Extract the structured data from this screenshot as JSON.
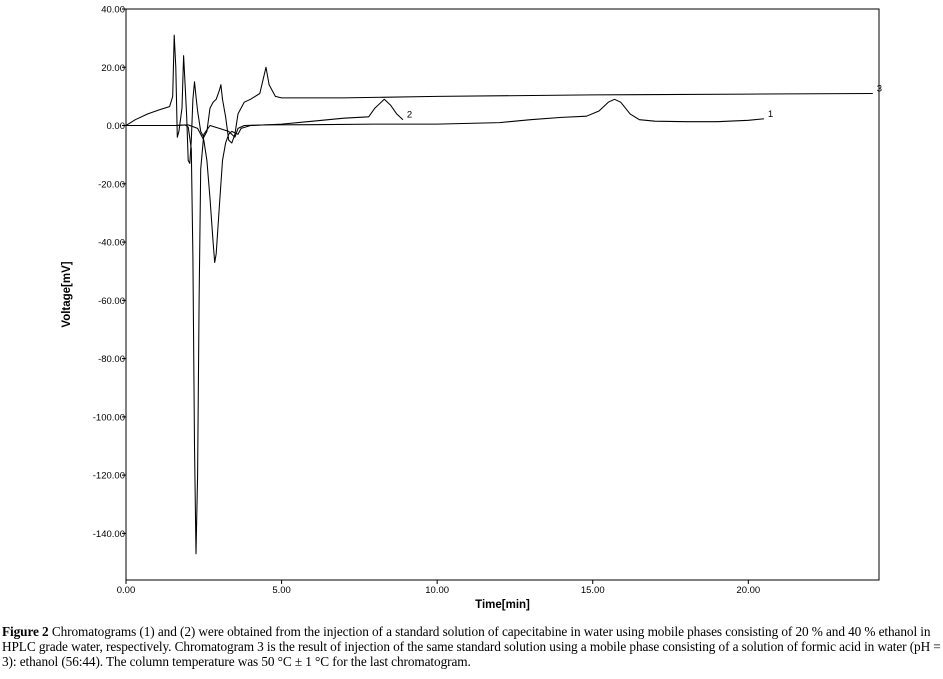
{
  "chart_data": {
    "type": "line",
    "xlabel": "Time[min]",
    "ylabel": "Voltage[mV]",
    "xlim": [
      0,
      24.2
    ],
    "ylim": [
      -156,
      40
    ],
    "xticks": [
      "0.00",
      "5.00",
      "10.00",
      "15.00",
      "20.00"
    ],
    "yticks": [
      "40.00",
      "20.00",
      "0.00",
      "-20.00",
      "-40.00",
      "-60.00",
      "-80.00",
      "-100.00",
      "-120.00",
      "-140.00"
    ],
    "grid": false,
    "series": [
      {
        "name": "1",
        "points": [
          [
            0,
            0
          ],
          [
            1.6,
            0
          ],
          [
            1.9,
            0.2
          ],
          [
            2.0,
            -0.5
          ],
          [
            2.1,
            -8
          ],
          [
            2.15,
            -45
          ],
          [
            2.2,
            -110
          ],
          [
            2.25,
            -147
          ],
          [
            2.3,
            -120
          ],
          [
            2.35,
            -60
          ],
          [
            2.4,
            -15
          ],
          [
            2.5,
            -3
          ],
          [
            2.7,
            0
          ],
          [
            3.0,
            -1
          ],
          [
            3.3,
            -2
          ],
          [
            3.5,
            -4
          ],
          [
            3.6,
            -1
          ],
          [
            3.8,
            0
          ],
          [
            4.5,
            0.2
          ],
          [
            6,
            0.3
          ],
          [
            8,
            0.5
          ],
          [
            10,
            0.5
          ],
          [
            12,
            1
          ],
          [
            13,
            2
          ],
          [
            14,
            2.8
          ],
          [
            14.8,
            3.2
          ],
          [
            15.2,
            5
          ],
          [
            15.5,
            8
          ],
          [
            15.7,
            9
          ],
          [
            15.9,
            8
          ],
          [
            16.2,
            4
          ],
          [
            16.5,
            2
          ],
          [
            17,
            1.5
          ],
          [
            18,
            1.3
          ],
          [
            19,
            1.3
          ],
          [
            20,
            1.8
          ],
          [
            20.5,
            2.3
          ]
        ]
      },
      {
        "name": "2",
        "points": [
          [
            0,
            0
          ],
          [
            1.6,
            0
          ],
          [
            2.0,
            0.2
          ],
          [
            2.3,
            -1
          ],
          [
            2.5,
            -5
          ],
          [
            2.6,
            -12
          ],
          [
            2.7,
            -25
          ],
          [
            2.8,
            -40
          ],
          [
            2.85,
            -47
          ],
          [
            2.9,
            -44
          ],
          [
            3.0,
            -28
          ],
          [
            3.1,
            -12
          ],
          [
            3.2,
            -6
          ],
          [
            3.3,
            -3
          ],
          [
            3.4,
            -2
          ],
          [
            3.6,
            -3
          ],
          [
            3.7,
            -1
          ],
          [
            4,
            0
          ],
          [
            5,
            0.5
          ],
          [
            6,
            1.5
          ],
          [
            7,
            2.5
          ],
          [
            7.8,
            3
          ],
          [
            8.0,
            6
          ],
          [
            8.3,
            9
          ],
          [
            8.5,
            7
          ],
          [
            8.7,
            4
          ],
          [
            8.9,
            2
          ]
        ]
      },
      {
        "name": "3",
        "points": [
          [
            0,
            0
          ],
          [
            0.3,
            2
          ],
          [
            0.7,
            4
          ],
          [
            1.1,
            5.5
          ],
          [
            1.4,
            6.5
          ],
          [
            1.5,
            10
          ],
          [
            1.55,
            31
          ],
          [
            1.6,
            20
          ],
          [
            1.65,
            -4
          ],
          [
            1.7,
            -2
          ],
          [
            1.8,
            6
          ],
          [
            1.85,
            24
          ],
          [
            1.9,
            14
          ],
          [
            1.95,
            3
          ],
          [
            2.0,
            -12
          ],
          [
            2.05,
            -13
          ],
          [
            2.1,
            -5
          ],
          [
            2.15,
            9
          ],
          [
            2.2,
            15
          ],
          [
            2.25,
            10
          ],
          [
            2.3,
            5
          ],
          [
            2.4,
            -2
          ],
          [
            2.5,
            -4
          ],
          [
            2.6,
            -2
          ],
          [
            2.7,
            6
          ],
          [
            2.8,
            8
          ],
          [
            2.9,
            9
          ],
          [
            3.0,
            12
          ],
          [
            3.05,
            14
          ],
          [
            3.1,
            9
          ],
          [
            3.2,
            3
          ],
          [
            3.3,
            -5
          ],
          [
            3.4,
            -6
          ],
          [
            3.5,
            -3
          ],
          [
            3.6,
            4
          ],
          [
            3.8,
            8
          ],
          [
            4.0,
            9
          ],
          [
            4.3,
            11
          ],
          [
            4.5,
            20
          ],
          [
            4.6,
            14
          ],
          [
            4.8,
            10
          ],
          [
            5,
            9.5
          ],
          [
            7,
            9.5
          ],
          [
            10,
            10
          ],
          [
            15,
            10.5
          ],
          [
            20,
            10.8
          ],
          [
            24,
            11
          ]
        ]
      }
    ]
  },
  "caption": {
    "label": "Figure 2",
    "text": " Chromatograms (1) and (2) were obtained from the injection of a standard solution of capecitabine in water using mobile phases consisting of 20 % and 40 % ethanol in HPLC grade water, respectively. Chromatogram 3 is the result of injection of the same standard solution using a mobile phase consisting of a solution of formic acid in water (pH = 3): ethanol (56:44). The column temperature was 50 °C ± 1 °C for the last chromatogram."
  }
}
